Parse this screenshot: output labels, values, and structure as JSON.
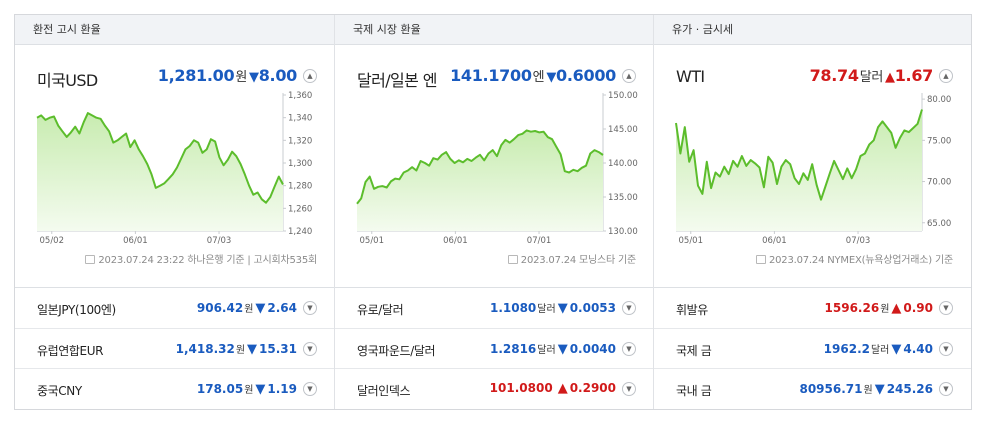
{
  "columns": [
    {
      "title": "환전 고시 환율",
      "main": {
        "name": "미국USD",
        "value": "1,281.00",
        "unit": "원",
        "arrow": "▼",
        "change": "8.00",
        "dir": "down",
        "source": "2023.07.24 23:22 하나은행 기준 | 고시회차535회"
      },
      "rows": [
        {
          "name": "일본JPY(100엔)",
          "value": "906.42",
          "unit": "원",
          "arrow": "▼",
          "change": "2.64",
          "dir": "down"
        },
        {
          "name": "유럽연합EUR",
          "value": "1,418.32",
          "unit": "원",
          "arrow": "▼",
          "change": "15.31",
          "dir": "down"
        },
        {
          "name": "중국CNY",
          "value": "178.05",
          "unit": "원",
          "arrow": "▼",
          "change": "1.19",
          "dir": "down"
        }
      ]
    },
    {
      "title": "국제 시장 환율",
      "main": {
        "name": "달러/일본 엔",
        "value": "141.1700",
        "unit": "엔",
        "arrow": "▼",
        "change": "0.6000",
        "dir": "down",
        "source": "2023.07.24 모닝스타 기준"
      },
      "rows": [
        {
          "name": "유로/달러",
          "value": "1.1080",
          "unit": "달러",
          "arrow": "▼",
          "change": "0.0053",
          "dir": "down"
        },
        {
          "name": "영국파운드/달러",
          "value": "1.2816",
          "unit": "달러",
          "arrow": "▼",
          "change": "0.0040",
          "dir": "down"
        },
        {
          "name": "달러인덱스",
          "value": "101.0800",
          "unit": "",
          "arrow": "▲",
          "change": "0.2900",
          "dir": "up"
        }
      ]
    },
    {
      "title": "유가 · 금시세",
      "main": {
        "name": "WTI",
        "value": "78.74",
        "unit": "달러",
        "arrow": "▲",
        "change": "1.67",
        "dir": "up",
        "source": "2023.07.24 NYMEX(뉴욕상업거래소) 기준"
      },
      "rows": [
        {
          "name": "휘발유",
          "value": "1596.26",
          "unit": "원",
          "arrow": "▲",
          "change": "0.90",
          "dir": "up"
        },
        {
          "name": "국제 금",
          "value": "1962.2",
          "unit": "달러",
          "arrow": "▼",
          "change": "4.40",
          "dir": "down"
        },
        {
          "name": "국내 금",
          "value": "80956.71",
          "unit": "원",
          "arrow": "▼",
          "change": "245.26",
          "dir": "down"
        }
      ]
    }
  ],
  "icons": {
    "expand": "chevron-up-icon",
    "collapse": "chevron-down-icon",
    "source": "document-icon"
  },
  "colors": {
    "up": "#d11a1a",
    "down": "#1a5bbf",
    "line": "#5cbd2c",
    "fill_top": "#c8ecb0",
    "fill_bottom": "#f4fbef"
  },
  "chart_data": [
    {
      "type": "area",
      "x_ticks": [
        "05/02",
        "06/01",
        "07/03"
      ],
      "y_ticks": [
        "1,360",
        "1,340",
        "1,320",
        "1,300",
        "1,280",
        "1,260",
        "1,240"
      ],
      "ylim": [
        1240,
        1360
      ],
      "y": [
        1340,
        1342,
        1338,
        1340,
        1341,
        1333,
        1328,
        1323,
        1327,
        1332,
        1326,
        1336,
        1344,
        1342,
        1340,
        1339,
        1333,
        1328,
        1318,
        1320,
        1323,
        1326,
        1314,
        1320,
        1312,
        1306,
        1299,
        1290,
        1278,
        1280,
        1282,
        1286,
        1290,
        1296,
        1304,
        1312,
        1315,
        1320,
        1318,
        1309,
        1312,
        1321,
        1319,
        1305,
        1298,
        1303,
        1310,
        1306,
        1299,
        1290,
        1280,
        1272,
        1274,
        1268,
        1265,
        1270,
        1279,
        1288,
        1281
      ]
    },
    {
      "type": "area",
      "x_ticks": [
        "05/01",
        "06/01",
        "07/01"
      ],
      "y_ticks": [
        "150.00",
        "145.00",
        "140.00",
        "135.00",
        "130.00"
      ],
      "ylim": [
        130,
        150
      ],
      "y": [
        134.0,
        134.8,
        137.2,
        138.0,
        136.2,
        136.5,
        136.6,
        136.4,
        137.3,
        137.7,
        137.6,
        138.6,
        138.9,
        139.4,
        138.9,
        140.3,
        140.0,
        139.6,
        140.7,
        140.5,
        141.2,
        141.6,
        140.6,
        140.0,
        140.4,
        140.1,
        140.6,
        140.3,
        140.8,
        141.2,
        140.4,
        141.4,
        141.9,
        141.0,
        142.6,
        143.4,
        143.0,
        143.5,
        144.1,
        144.3,
        144.8,
        144.6,
        144.7,
        144.5,
        144.6,
        143.8,
        143.5,
        142.4,
        141.3,
        138.8,
        138.6,
        139.0,
        138.8,
        139.3,
        139.6,
        141.4,
        141.9,
        141.6,
        141.17
      ]
    },
    {
      "type": "area",
      "x_ticks": [
        "05/01",
        "06/01",
        "07/03"
      ],
      "y_ticks": [
        "80.00",
        "75.00",
        "70.00",
        "65.00"
      ],
      "ylim": [
        64,
        80.5
      ],
      "y": [
        77.1,
        73.4,
        76.6,
        72.4,
        73.8,
        69.5,
        68.5,
        72.4,
        69.2,
        71.1,
        70.6,
        71.8,
        70.9,
        72.5,
        71.8,
        73.1,
        71.9,
        72.6,
        72.2,
        71.7,
        69.3,
        73.0,
        72.3,
        69.7,
        71.8,
        72.6,
        72.1,
        70.4,
        69.7,
        71.0,
        70.2,
        72.1,
        69.6,
        67.8,
        69.4,
        71.0,
        72.5,
        71.4,
        70.3,
        71.6,
        70.4,
        71.5,
        73.1,
        73.4,
        74.5,
        75.0,
        76.6,
        77.3,
        76.6,
        75.9,
        74.1,
        75.3,
        76.2,
        76.0,
        76.5,
        77.0,
        78.74
      ]
    }
  ]
}
